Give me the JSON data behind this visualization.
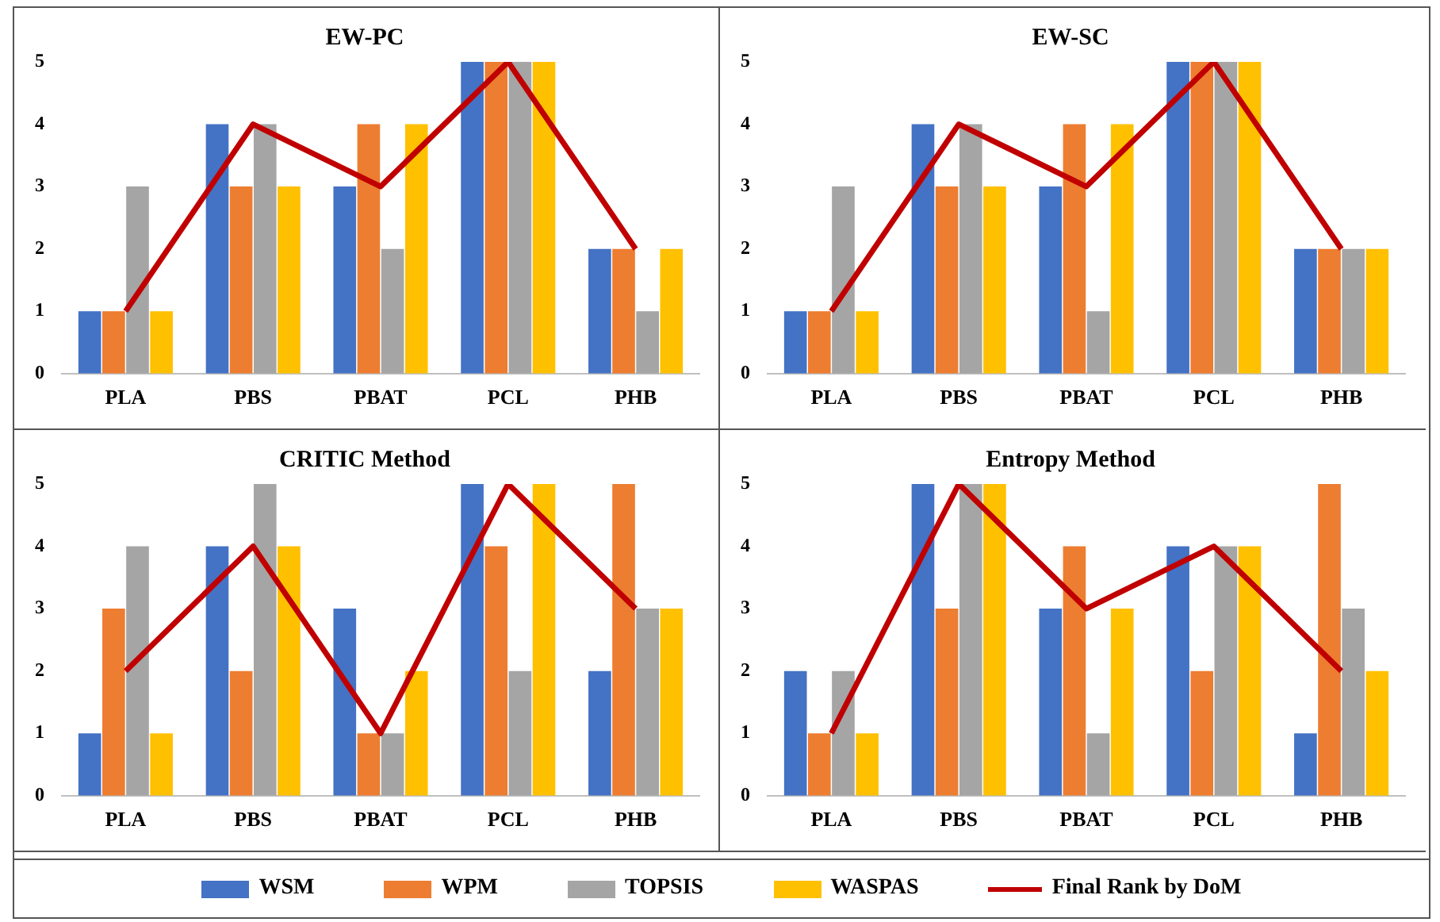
{
  "chart_data": [
    {
      "type": "bar",
      "title": "EW-PC",
      "categories": [
        "PLA",
        "PBS",
        "PBAT",
        "PCL",
        "PHB"
      ],
      "ylim": [
        0,
        5
      ],
      "yticks": [
        0,
        1,
        2,
        3,
        4,
        5
      ],
      "legend": "bottom",
      "series": [
        {
          "name": "WSM",
          "color": "#4472c4",
          "values": [
            1,
            4,
            3,
            5,
            2
          ]
        },
        {
          "name": "WPM",
          "color": "#ed7d31",
          "values": [
            1,
            3,
            4,
            5,
            2
          ]
        },
        {
          "name": "TOPSIS",
          "color": "#a5a5a5",
          "values": [
            3,
            4,
            2,
            5,
            1
          ]
        },
        {
          "name": "WASPAS",
          "color": "#ffc000",
          "values": [
            1,
            3,
            4,
            5,
            2
          ]
        },
        {
          "name": "Final Rank by DoM",
          "color": "#c00000",
          "type": "line",
          "values": [
            1,
            4,
            3,
            5,
            2
          ]
        }
      ]
    },
    {
      "type": "bar",
      "title": "EW-SC",
      "categories": [
        "PLA",
        "PBS",
        "PBAT",
        "PCL",
        "PHB"
      ],
      "ylim": [
        0,
        5
      ],
      "yticks": [
        0,
        1,
        2,
        3,
        4,
        5
      ],
      "series": [
        {
          "name": "WSM",
          "color": "#4472c4",
          "values": [
            1,
            4,
            3,
            5,
            2
          ]
        },
        {
          "name": "WPM",
          "color": "#ed7d31",
          "values": [
            1,
            3,
            4,
            5,
            2
          ]
        },
        {
          "name": "TOPSIS",
          "color": "#a5a5a5",
          "values": [
            3,
            4,
            1,
            5,
            2
          ]
        },
        {
          "name": "WASPAS",
          "color": "#ffc000",
          "values": [
            1,
            3,
            4,
            5,
            2
          ]
        },
        {
          "name": "Final Rank by DoM",
          "color": "#c00000",
          "type": "line",
          "values": [
            1,
            4,
            3,
            5,
            2
          ]
        }
      ]
    },
    {
      "type": "bar",
      "title": "CRITIC Method",
      "categories": [
        "PLA",
        "PBS",
        "PBAT",
        "PCL",
        "PHB"
      ],
      "ylim": [
        0,
        5
      ],
      "yticks": [
        0,
        1,
        2,
        3,
        4,
        5
      ],
      "series": [
        {
          "name": "WSM",
          "color": "#4472c4",
          "values": [
            1,
            4,
            3,
            5,
            2
          ]
        },
        {
          "name": "WPM",
          "color": "#ed7d31",
          "values": [
            3,
            2,
            1,
            4,
            5
          ]
        },
        {
          "name": "TOPSIS",
          "color": "#a5a5a5",
          "values": [
            4,
            5,
            1,
            2,
            3
          ]
        },
        {
          "name": "WASPAS",
          "color": "#ffc000",
          "values": [
            1,
            4,
            2,
            5,
            3
          ]
        },
        {
          "name": "Final Rank by DoM",
          "color": "#c00000",
          "type": "line",
          "values": [
            2,
            4,
            1,
            5,
            3
          ]
        }
      ]
    },
    {
      "type": "bar",
      "title": "Entropy Method",
      "categories": [
        "PLA",
        "PBS",
        "PBAT",
        "PCL",
        "PHB"
      ],
      "ylim": [
        0,
        5
      ],
      "yticks": [
        0,
        1,
        2,
        3,
        4,
        5
      ],
      "series": [
        {
          "name": "WSM",
          "color": "#4472c4",
          "values": [
            2,
            5,
            3,
            4,
            1
          ]
        },
        {
          "name": "WPM",
          "color": "#ed7d31",
          "values": [
            1,
            3,
            4,
            2,
            5
          ]
        },
        {
          "name": "TOPSIS",
          "color": "#a5a5a5",
          "values": [
            2,
            5,
            1,
            4,
            3
          ]
        },
        {
          "name": "WASPAS",
          "color": "#ffc000",
          "values": [
            1,
            5,
            3,
            4,
            2
          ]
        },
        {
          "name": "Final Rank by DoM",
          "color": "#c00000",
          "type": "line",
          "values": [
            1,
            5,
            3,
            4,
            2
          ]
        }
      ]
    }
  ]
}
